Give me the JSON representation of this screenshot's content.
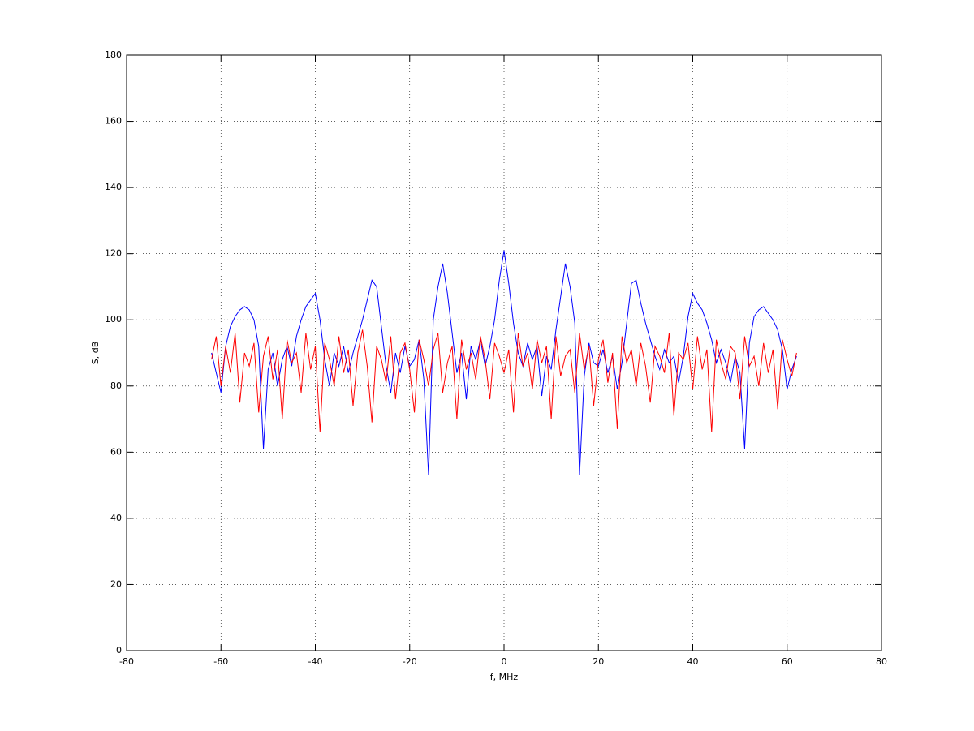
{
  "chart_data": {
    "type": "line",
    "x_label": "f, MHz",
    "y_label": "S, dB",
    "x": [
      -62,
      -61,
      -60,
      -59,
      -58,
      -57,
      -56,
      -55,
      -54,
      -53,
      -52,
      -51,
      -50,
      -49,
      -48,
      -47,
      -46,
      -45,
      -44,
      -43,
      -42,
      -41,
      -40,
      -39,
      -38,
      -37,
      -36,
      -35,
      -34,
      -33,
      -32,
      -31,
      -30,
      -29,
      -28,
      -27,
      -26,
      -25,
      -24,
      -23,
      -22,
      -21,
      -20,
      -19,
      -18,
      -17,
      -16,
      -15,
      -14,
      -13,
      -12,
      -11,
      -10,
      -9,
      -8,
      -7,
      -6,
      -5,
      -4,
      -3,
      -2,
      -1,
      0,
      1,
      2,
      3,
      4,
      5,
      6,
      7,
      8,
      9,
      10,
      11,
      12,
      13,
      14,
      15,
      16,
      17,
      18,
      19,
      20,
      21,
      22,
      23,
      24,
      25,
      26,
      27,
      28,
      29,
      30,
      31,
      32,
      33,
      34,
      35,
      36,
      37,
      38,
      39,
      40,
      41,
      42,
      43,
      44,
      45,
      46,
      47,
      48,
      49,
      50,
      51,
      52,
      53,
      54,
      55,
      56,
      57,
      58,
      59,
      60,
      61,
      62
    ],
    "series": [
      {
        "color": "#0000ff",
        "values": [
          90,
          84,
          78,
          92,
          98,
          101,
          103,
          104,
          103,
          100,
          92,
          61,
          85,
          90,
          80,
          88,
          92,
          86,
          95,
          100,
          104,
          106,
          108,
          100,
          88,
          80,
          90,
          86,
          92,
          84,
          90,
          95,
          100,
          106,
          112,
          110,
          98,
          86,
          78,
          90,
          84,
          92,
          86,
          88,
          94,
          82,
          53,
          100,
          110,
          117,
          108,
          96,
          84,
          90,
          76,
          92,
          88,
          94,
          86,
          92,
          100,
          112,
          121,
          111,
          99,
          90,
          86,
          93,
          88,
          92,
          77,
          89,
          85,
          97,
          107,
          117,
          110,
          99,
          53,
          83,
          93,
          87,
          86,
          91,
          84,
          89,
          79,
          87,
          99,
          111,
          112,
          105,
          99,
          94,
          89,
          85,
          91,
          87,
          89,
          81,
          89,
          101,
          108,
          105,
          103,
          99,
          94,
          87,
          91,
          87,
          81,
          89,
          84,
          61,
          93,
          101,
          103,
          104,
          102,
          100,
          97,
          91,
          79,
          85,
          89
        ]
      },
      {
        "color": "#ff0000",
        "values": [
          88,
          95,
          80,
          92,
          84,
          96,
          75,
          90,
          86,
          93,
          72,
          89,
          95,
          82,
          91,
          70,
          94,
          87,
          90,
          78,
          96,
          85,
          92,
          66,
          93,
          88,
          80,
          95,
          84,
          91,
          74,
          90,
          97,
          86,
          69,
          92,
          88,
          81,
          95,
          76,
          90,
          93,
          85,
          72,
          94,
          88,
          80,
          91,
          96,
          78,
          87,
          92,
          70,
          94,
          85,
          90,
          82,
          95,
          88,
          76,
          93,
          89,
          84,
          91,
          72,
          96,
          86,
          90,
          79,
          94,
          87,
          92,
          70,
          95,
          83,
          89,
          91,
          78,
          96,
          85,
          92,
          74,
          88,
          94,
          81,
          90,
          67,
          95,
          87,
          91,
          80,
          93,
          86,
          75,
          92,
          89,
          84,
          96,
          71,
          90,
          88,
          93,
          79,
          95,
          85,
          91,
          66,
          94,
          87,
          82,
          92,
          90,
          76,
          95,
          86,
          89,
          80,
          93,
          84,
          91,
          73,
          94,
          88,
          83,
          90
        ]
      }
    ],
    "xlim": [
      -80,
      80
    ],
    "xticks": [
      -80,
      -60,
      -40,
      -20,
      0,
      20,
      40,
      60,
      80
    ],
    "ylim": [
      0,
      180
    ],
    "yticks": [
      0,
      20,
      40,
      60,
      80,
      100,
      120,
      140,
      160,
      180
    ],
    "grid": true
  }
}
